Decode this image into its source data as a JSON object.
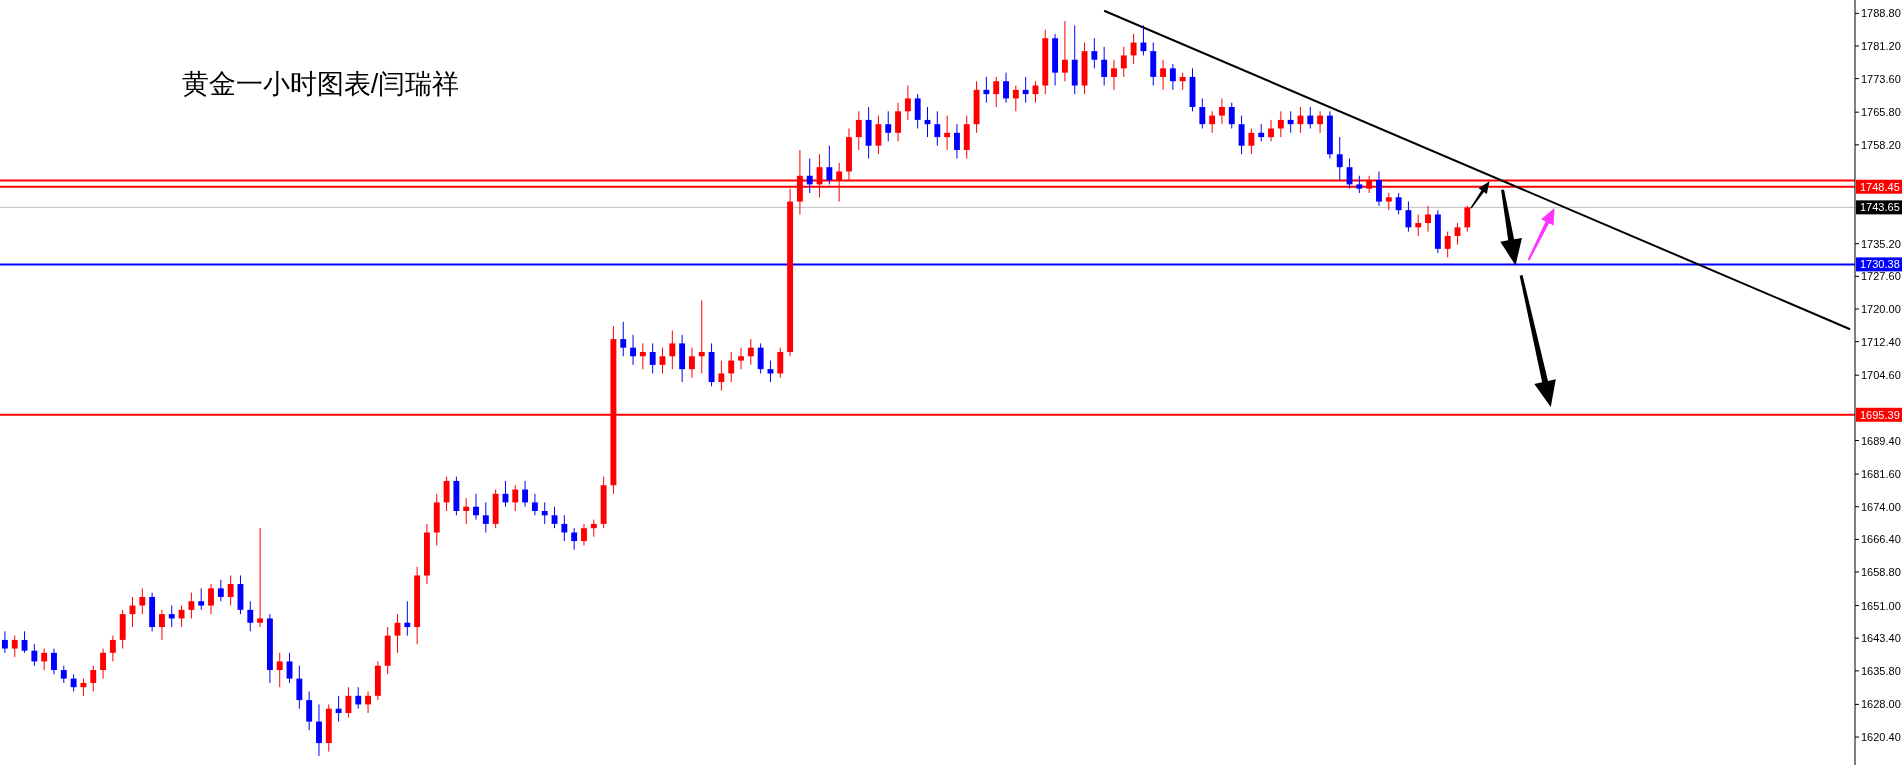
{
  "chart_data": {
    "type": "candlestick",
    "title": "黄金一小时图表/闫瑞祥",
    "categories": [
      null,
      null,
      null,
      null,
      null,
      null,
      null,
      null,
      null,
      null,
      null,
      null,
      null,
      null,
      null,
      null,
      null,
      null,
      null,
      null,
      null,
      null,
      null,
      null,
      null,
      null,
      null,
      null,
      null,
      null,
      null,
      null,
      null,
      null,
      null,
      null,
      null,
      null,
      null,
      null,
      null,
      null,
      null,
      null,
      null,
      null,
      null,
      null,
      null,
      null,
      null,
      null,
      null,
      null,
      null,
      null,
      null,
      null,
      null,
      null,
      null,
      null,
      null,
      null,
      null,
      null,
      null,
      null,
      null,
      null,
      null,
      null,
      null,
      null,
      null,
      null,
      null,
      null,
      null,
      null,
      null,
      null,
      null,
      null,
      null,
      null,
      null,
      null,
      null,
      null,
      null,
      null,
      null,
      null,
      null,
      null,
      null,
      null,
      null,
      null,
      null,
      null,
      null,
      null,
      null,
      null,
      null,
      null,
      null,
      null,
      null,
      null,
      null,
      null,
      null,
      null,
      null,
      null,
      null,
      null,
      null,
      null,
      null,
      null,
      null,
      null,
      null,
      null,
      null,
      null,
      null,
      null,
      null,
      null,
      null,
      null,
      null,
      null,
      null,
      null,
      null,
      null,
      null,
      null,
      null,
      null,
      null,
      null,
      null,
      null,
      null,
      null,
      null,
      null,
      null,
      null,
      null,
      null,
      null,
      null,
      null,
      null,
      null,
      null,
      null,
      null,
      null,
      null,
      null,
      null,
      null,
      null,
      null,
      null,
      null,
      null,
      null,
      null,
      null,
      null,
      null,
      null,
      null,
      null,
      null,
      null,
      null,
      null,
      null
    ],
    "ohlc": [
      [
        1643,
        1645,
        1640,
        1641
      ],
      [
        1641,
        1644,
        1639,
        1643
      ],
      [
        1643,
        1645,
        1640,
        1640.5
      ],
      [
        1640.5,
        1642,
        1637,
        1638
      ],
      [
        1638,
        1641,
        1636,
        1640
      ],
      [
        1640,
        1641,
        1635,
        1636
      ],
      [
        1636,
        1637,
        1633,
        1634
      ],
      [
        1634,
        1635,
        1631,
        1632
      ],
      [
        1632,
        1634,
        1630,
        1633
      ],
      [
        1633,
        1637,
        1631,
        1636
      ],
      [
        1636,
        1641,
        1634,
        1640
      ],
      [
        1640,
        1644,
        1638,
        1643
      ],
      [
        1643,
        1650,
        1641,
        1649
      ],
      [
        1649,
        1653,
        1646,
        1651
      ],
      [
        1651,
        1655,
        1649,
        1653
      ],
      [
        1653,
        1654,
        1645,
        1646
      ],
      [
        1646,
        1650,
        1643,
        1649
      ],
      [
        1649,
        1651,
        1646,
        1648
      ],
      [
        1648,
        1651,
        1646,
        1650
      ],
      [
        1650,
        1654,
        1648,
        1652
      ],
      [
        1652,
        1655,
        1650,
        1651
      ],
      [
        1651,
        1656,
        1649,
        1655
      ],
      [
        1655,
        1657,
        1652,
        1653
      ],
      [
        1653,
        1658,
        1651,
        1656
      ],
      [
        1656,
        1658,
        1649,
        1650
      ],
      [
        1650,
        1652,
        1645,
        1647
      ],
      [
        1647,
        1669,
        1646,
        1648
      ],
      [
        1648,
        1649,
        1633,
        1636
      ],
      [
        1636,
        1640,
        1632,
        1638
      ],
      [
        1638,
        1640,
        1633,
        1634
      ],
      [
        1634,
        1637,
        1627,
        1629
      ],
      [
        1629,
        1631,
        1622,
        1624
      ],
      [
        1624,
        1628,
        1616,
        1619
      ],
      [
        1619,
        1628,
        1617,
        1627
      ],
      [
        1627,
        1630,
        1624,
        1626
      ],
      [
        1626,
        1632,
        1625,
        1630
      ],
      [
        1630,
        1632,
        1627,
        1628
      ],
      [
        1628,
        1631,
        1626,
        1630
      ],
      [
        1630,
        1638,
        1629,
        1637
      ],
      [
        1637,
        1646,
        1635,
        1644
      ],
      [
        1644,
        1649,
        1640,
        1647
      ],
      [
        1647,
        1652,
        1644,
        1646
      ],
      [
        1646,
        1660,
        1642,
        1658
      ],
      [
        1658,
        1670,
        1656,
        1668
      ],
      [
        1668,
        1677,
        1665,
        1675
      ],
      [
        1675,
        1681,
        1673,
        1680
      ],
      [
        1680,
        1681,
        1672,
        1673
      ],
      [
        1673,
        1676,
        1670,
        1674
      ],
      [
        1674,
        1677,
        1671,
        1672
      ],
      [
        1672,
        1675,
        1668,
        1670
      ],
      [
        1670,
        1678,
        1669,
        1677
      ],
      [
        1677,
        1680,
        1674,
        1675
      ],
      [
        1675,
        1679,
        1673,
        1678
      ],
      [
        1678,
        1680,
        1674,
        1675
      ],
      [
        1675,
        1677,
        1672,
        1673
      ],
      [
        1673,
        1675,
        1670,
        1672
      ],
      [
        1672,
        1674,
        1669,
        1670
      ],
      [
        1670,
        1672,
        1666,
        1668
      ],
      [
        1668,
        1669,
        1664,
        1666
      ],
      [
        1666,
        1670,
        1665,
        1669
      ],
      [
        1669,
        1671,
        1667,
        1670
      ],
      [
        1670,
        1681,
        1669,
        1679
      ],
      [
        1679,
        1716,
        1677,
        1713
      ],
      [
        1713,
        1717,
        1709,
        1711
      ],
      [
        1711,
        1714,
        1707,
        1709
      ],
      [
        1709,
        1712,
        1706,
        1710
      ],
      [
        1710,
        1712,
        1705,
        1707
      ],
      [
        1707,
        1711,
        1705,
        1709
      ],
      [
        1709,
        1715,
        1706,
        1712
      ],
      [
        1712,
        1714,
        1703,
        1706
      ],
      [
        1706,
        1711,
        1704,
        1709
      ],
      [
        1709,
        1722,
        1705,
        1710
      ],
      [
        1710,
        1712,
        1702,
        1703
      ],
      [
        1703,
        1708,
        1701,
        1705
      ],
      [
        1705,
        1710,
        1703,
        1708
      ],
      [
        1708,
        1711,
        1706,
        1709
      ],
      [
        1709,
        1713,
        1707,
        1711
      ],
      [
        1711,
        1712,
        1705,
        1706
      ],
      [
        1706,
        1708,
        1703,
        1705
      ],
      [
        1705,
        1711,
        1704,
        1710
      ],
      [
        1710,
        1748,
        1709,
        1745
      ],
      [
        1745,
        1757,
        1742,
        1751
      ],
      [
        1751,
        1755,
        1747,
        1749
      ],
      [
        1749,
        1756,
        1746,
        1753
      ],
      [
        1753,
        1758,
        1749,
        1750
      ],
      [
        1750,
        1754,
        1745,
        1752
      ],
      [
        1752,
        1762,
        1750,
        1760
      ],
      [
        1760,
        1766,
        1757,
        1764
      ],
      [
        1764,
        1767,
        1755,
        1758
      ],
      [
        1758,
        1765,
        1756,
        1763
      ],
      [
        1763,
        1766,
        1759,
        1761
      ],
      [
        1761,
        1768,
        1759,
        1766
      ],
      [
        1766,
        1772,
        1764,
        1769
      ],
      [
        1769,
        1770,
        1762,
        1764
      ],
      [
        1764,
        1767,
        1760,
        1763
      ],
      [
        1763,
        1766,
        1758,
        1760
      ],
      [
        1760,
        1765,
        1757,
        1761
      ],
      [
        1761,
        1763,
        1755,
        1757
      ],
      [
        1757,
        1765,
        1755,
        1763
      ],
      [
        1763,
        1773,
        1761,
        1771
      ],
      [
        1771,
        1774,
        1768,
        1770
      ],
      [
        1770,
        1774,
        1767,
        1773
      ],
      [
        1773,
        1775,
        1768,
        1769
      ],
      [
        1769,
        1772,
        1766,
        1771
      ],
      [
        1771,
        1774,
        1768,
        1770
      ],
      [
        1770,
        1773,
        1768,
        1772
      ],
      [
        1772,
        1785,
        1770,
        1783
      ],
      [
        1783,
        1784,
        1772,
        1775
      ],
      [
        1775,
        1787,
        1773,
        1778
      ],
      [
        1778,
        1786,
        1770,
        1772
      ],
      [
        1772,
        1782,
        1770,
        1780
      ],
      [
        1780,
        1783,
        1776,
        1778
      ],
      [
        1778,
        1781,
        1772,
        1774
      ],
      [
        1774,
        1778,
        1771,
        1776
      ],
      [
        1776,
        1781,
        1774,
        1779
      ],
      [
        1779,
        1784,
        1777,
        1782
      ],
      [
        1782,
        1786,
        1779,
        1780
      ],
      [
        1780,
        1782,
        1772,
        1774
      ],
      [
        1774,
        1778,
        1771,
        1776
      ],
      [
        1776,
        1777,
        1771,
        1773
      ],
      [
        1773,
        1775,
        1771,
        1774
      ],
      [
        1774,
        1776,
        1766,
        1767
      ],
      [
        1767,
        1769,
        1762,
        1763
      ],
      [
        1763,
        1766,
        1761,
        1765
      ],
      [
        1765,
        1769,
        1763,
        1767
      ],
      [
        1767,
        1768,
        1762,
        1763
      ],
      [
        1763,
        1765,
        1756,
        1758
      ],
      [
        1758,
        1762,
        1756,
        1761
      ],
      [
        1761,
        1763,
        1759,
        1760
      ],
      [
        1760,
        1764,
        1759,
        1762
      ],
      [
        1762,
        1766,
        1760,
        1764
      ],
      [
        1764,
        1766,
        1761,
        1763
      ],
      [
        1763,
        1767,
        1761,
        1765
      ],
      [
        1765,
        1767,
        1762,
        1763
      ],
      [
        1763,
        1766,
        1761,
        1765
      ],
      [
        1765,
        1766,
        1755,
        1756
      ],
      [
        1756,
        1760,
        1750,
        1753
      ],
      [
        1753,
        1755,
        1748,
        1749
      ],
      [
        1749,
        1751,
        1747,
        1748
      ],
      [
        1748,
        1751,
        1747,
        1750
      ],
      [
        1750,
        1752,
        1744,
        1745
      ],
      [
        1745,
        1747,
        1743,
        1746
      ],
      [
        1746,
        1747,
        1742,
        1743
      ],
      [
        1743,
        1745,
        1738,
        1739
      ],
      [
        1739,
        1742,
        1737,
        1740
      ],
      [
        1740,
        1744,
        1738,
        1742
      ],
      [
        1742,
        1743,
        1733,
        1734
      ],
      [
        1734,
        1738,
        1732,
        1737
      ],
      [
        1737,
        1740,
        1735,
        1739
      ],
      [
        1739,
        1744,
        1738,
        1743.65
      ],
      null,
      null,
      null,
      null,
      null,
      null,
      null,
      null,
      null,
      null,
      null,
      null,
      null,
      null,
      null,
      null,
      null,
      null,
      null,
      null,
      null,
      null,
      null,
      null,
      null,
      null,
      null,
      null,
      null,
      null,
      null,
      null,
      null,
      null,
      null,
      null,
      null,
      null,
      null
    ],
    "colors": [
      "#0000ff",
      "#ff0000",
      "#0000ff",
      "#0000ff",
      "#ff0000",
      "#0000ff",
      "#0000ff",
      "#0000ff",
      "#ff0000",
      "#ff0000",
      "#ff0000",
      "#ff0000",
      "#ff0000",
      "#ff0000",
      "#ff0000",
      "#0000ff",
      "#ff0000",
      "#0000ff",
      "#ff0000",
      "#ff0000",
      "#0000ff",
      "#ff0000",
      "#0000ff",
      "#ff0000",
      "#0000ff",
      "#0000ff",
      "#ff0000",
      "#0000ff",
      "#ff0000",
      "#0000ff",
      "#0000ff",
      "#0000ff",
      "#0000ff",
      "#ff0000",
      "#0000ff",
      "#ff0000",
      "#0000ff",
      "#ff0000",
      "#ff0000",
      "#ff0000",
      "#ff0000",
      "#0000ff",
      "#ff0000",
      "#ff0000",
      "#ff0000",
      "#ff0000",
      "#0000ff",
      "#ff0000",
      "#0000ff",
      "#0000ff",
      "#ff0000",
      "#0000ff",
      "#ff0000",
      "#0000ff",
      "#0000ff",
      "#0000ff",
      "#0000ff",
      "#0000ff",
      "#0000ff",
      "#ff0000",
      "#ff0000",
      "#ff0000",
      "#ff0000",
      "#0000ff",
      "#0000ff",
      "#ff0000",
      "#0000ff",
      "#ff0000",
      "#ff0000",
      "#0000ff",
      "#ff0000",
      "#ff0000",
      "#0000ff",
      "#ff0000",
      "#ff0000",
      "#ff0000",
      "#ff0000",
      "#0000ff",
      "#0000ff",
      "#ff0000",
      "#ff0000",
      "#ff0000",
      "#0000ff",
      "#ff0000",
      "#0000ff",
      "#ff0000",
      "#ff0000",
      "#ff0000",
      "#0000ff",
      "#ff0000",
      "#0000ff",
      "#ff0000",
      "#ff0000",
      "#0000ff",
      "#0000ff",
      "#0000ff",
      "#ff0000",
      "#0000ff",
      "#ff0000",
      "#ff0000",
      "#0000ff",
      "#ff0000",
      "#0000ff",
      "#ff0000",
      "#0000ff",
      "#ff0000",
      "#ff0000",
      "#0000ff",
      "#ff0000",
      "#0000ff",
      "#ff0000",
      "#0000ff",
      "#0000ff",
      "#ff0000",
      "#ff0000",
      "#ff0000",
      "#0000ff",
      "#0000ff",
      "#ff0000",
      "#0000ff",
      "#ff0000",
      "#0000ff",
      "#0000ff",
      "#ff0000",
      "#ff0000",
      "#0000ff",
      "#0000ff",
      "#ff0000",
      "#0000ff",
      "#ff0000",
      "#ff0000",
      "#0000ff",
      "#ff0000",
      "#0000ff",
      "#ff0000",
      "#0000ff",
      "#0000ff",
      "#0000ff",
      "#0000ff",
      "#ff0000",
      "#0000ff",
      "#ff0000",
      "#0000ff",
      "#0000ff",
      "#ff0000",
      "#ff0000",
      "#0000ff",
      "#ff0000",
      "#ff0000",
      "#ff0000",
      null,
      null,
      null,
      null,
      null,
      null,
      null,
      null,
      null,
      null,
      null,
      null,
      null,
      null,
      null,
      null,
      null,
      null,
      null,
      null,
      null,
      null,
      null,
      null,
      null,
      null,
      null,
      null,
      null,
      null,
      null,
      null,
      null,
      null,
      null,
      null,
      null,
      null,
      null
    ],
    "series": [
      {
        "type": "line",
        "color": "#000000",
        "values": [
          null,
          null,
          null,
          null,
          null,
          null,
          null,
          null,
          null,
          null,
          null,
          null,
          null,
          null,
          null,
          null,
          null,
          null,
          null,
          null,
          null,
          null,
          null,
          null,
          null,
          null,
          null,
          null,
          null,
          null,
          null,
          null,
          null,
          null,
          null,
          null,
          null,
          null,
          null,
          null,
          null,
          null,
          null,
          null,
          null,
          null,
          null,
          null,
          null,
          null,
          null,
          null,
          null,
          null,
          null,
          null,
          null,
          null,
          null,
          null,
          null,
          null,
          null,
          null,
          null,
          null,
          null,
          null,
          null,
          null,
          null,
          null,
          null,
          null,
          null,
          null,
          null,
          null,
          null,
          null,
          null,
          null,
          null,
          null,
          null,
          null,
          null,
          null,
          null,
          null,
          null,
          null,
          null,
          null,
          null,
          null,
          null,
          null,
          null,
          null,
          null,
          null,
          null,
          null,
          null,
          null,
          null,
          null,
          null,
          null,
          null,
          null,
          1789.4,
          null,
          null,
          null,
          null,
          null,
          null,
          null,
          null,
          null,
          null,
          null,
          null,
          null,
          null,
          null,
          null,
          null,
          null,
          null,
          null,
          null,
          null,
          null,
          null,
          null,
          null,
          null,
          null,
          null,
          null,
          null,
          null,
          null,
          null,
          null,
          null,
          null,
          null,
          null,
          null,
          null,
          null,
          null,
          null,
          null,
          null,
          null,
          null,
          null,
          null,
          null,
          null,
          null,
          null,
          null,
          null,
          null,
          null,
          null,
          null,
          null,
          null,
          null,
          null,
          null,
          null,
          null,
          null,
          null,
          null,
          null,
          null,
          null,
          null,
          null,
          1715.3
        ]
      }
    ],
    "ylim": [
      1613.9,
      1791.9
    ],
    "yticks": [
      {
        "value": 1788.8,
        "label": "1788.80"
      },
      {
        "value": 1781.2,
        "label": "1781.20"
      },
      {
        "value": 1773.6,
        "label": "1773.60"
      },
      {
        "value": 1765.8,
        "label": "1765.80"
      },
      {
        "value": 1758.2,
        "label": "1758.20"
      },
      {
        "value": 1735.2,
        "label": "1735.20"
      },
      {
        "value": 1727.6,
        "label": "1727.60"
      },
      {
        "value": 1720,
        "label": "1720.00"
      },
      {
        "value": 1712.4,
        "label": "1712.40"
      },
      {
        "value": 1704.6,
        "label": "1704.60"
      },
      {
        "value": 1689.4,
        "label": "1689.40"
      },
      {
        "value": 1681.6,
        "label": "1681.60"
      },
      {
        "value": 1674,
        "label": "1674.00"
      },
      {
        "value": 1666.4,
        "label": "1666.40"
      },
      {
        "value": 1658.8,
        "label": "1658.80"
      },
      {
        "value": 1651,
        "label": "1651.00"
      },
      {
        "value": 1643.4,
        "label": "1643.40"
      },
      {
        "value": 1635.8,
        "label": "1635.80"
      },
      {
        "value": 1628,
        "label": "1628.00"
      },
      {
        "value": 1620.4,
        "label": "1620.40"
      }
    ],
    "ref_lines": [
      {
        "axis": "y",
        "value": 1749.9,
        "color": "#ff0000"
      },
      {
        "axis": "y",
        "value": 1748.45,
        "label": "1748.45",
        "color": "#ff0000"
      },
      {
        "axis": "y",
        "value": 1743.65,
        "label": "1743.65",
        "color": "#c0c0c0"
      },
      {
        "axis": "y",
        "value": 1730.38,
        "label": "1730.38",
        "color": "#0000ff"
      },
      {
        "axis": "y",
        "value": 1695.39,
        "label": "1695.39",
        "color": "#ff0000"
      }
    ],
    "tick_labels": "y",
    "grid": false
  }
}
